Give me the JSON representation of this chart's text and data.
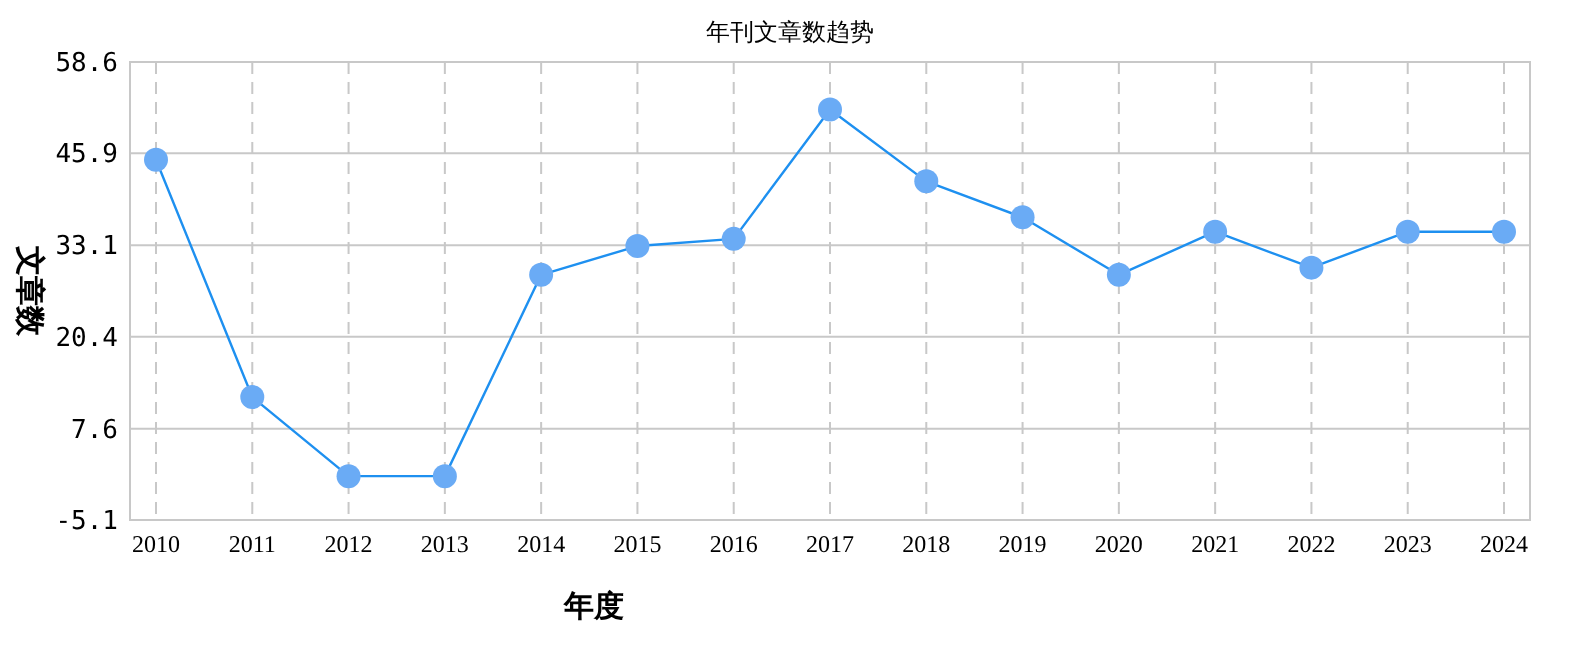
{
  "chart_data": {
    "type": "line",
    "title": "年刊文章数趋势",
    "xlabel": "年度",
    "ylabel": "文章数",
    "categories": [
      "2010",
      "2011",
      "2012",
      "2013",
      "2014",
      "2015",
      "2016",
      "2017",
      "2018",
      "2019",
      "2020",
      "2021",
      "2022",
      "2023",
      "2024"
    ],
    "series": [
      {
        "color": "#1e90f0",
        "values": [
          45,
          12,
          1,
          1,
          29,
          33,
          34,
          52,
          42,
          37,
          29,
          35,
          30,
          35,
          35
        ]
      }
    ],
    "ylim": [
      -5.1,
      58.6
    ],
    "yticks": [
      -5.1,
      7.6,
      20.4,
      33.1,
      45.9,
      58.6
    ],
    "grid": true,
    "marker": "circle",
    "line_style": "solid"
  }
}
